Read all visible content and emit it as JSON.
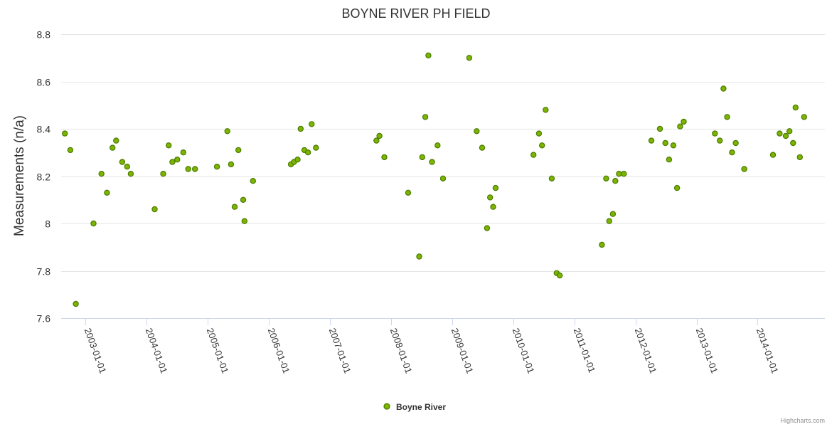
{
  "chart_data": {
    "type": "scatter",
    "title": "BOYNE RIVER PH FIELD",
    "xlabel": "",
    "ylabel": "Measurements (n/a)",
    "ylim": [
      7.6,
      8.8
    ],
    "yticks": [
      7.6,
      7.8,
      8,
      8.2,
      8.4,
      8.6,
      8.8
    ],
    "ytick_labels": [
      "7.6",
      "7.8",
      "8",
      "8.2",
      "8.4",
      "8.6",
      "8.8"
    ],
    "xlim": [
      2002.6,
      2015.1
    ],
    "xticks": [
      2003,
      2004,
      2005,
      2006,
      2007,
      2008,
      2009,
      2010,
      2011,
      2012,
      2013,
      2014
    ],
    "xtick_labels": [
      "2003-01-01",
      "2004-01-01",
      "2005-01-01",
      "2006-01-01",
      "2007-01-01",
      "2008-01-01",
      "2009-01-01",
      "2010-01-01",
      "2011-01-01",
      "2012-01-01",
      "2013-01-01",
      "2014-01-01"
    ],
    "grid": true,
    "legend_position": "bottom-center",
    "series": [
      {
        "name": "Boyne River",
        "color": "#7cb400",
        "border_color": "#4a7a00",
        "points": [
          [
            2002.66,
            8.38
          ],
          [
            2002.75,
            8.31
          ],
          [
            2002.84,
            7.66
          ],
          [
            2003.13,
            8.0
          ],
          [
            2003.26,
            8.21
          ],
          [
            2003.35,
            8.13
          ],
          [
            2003.44,
            8.32
          ],
          [
            2003.5,
            8.35
          ],
          [
            2003.6,
            8.26
          ],
          [
            2003.68,
            8.24
          ],
          [
            2003.74,
            8.21
          ],
          [
            2004.13,
            8.06
          ],
          [
            2004.27,
            8.21
          ],
          [
            2004.36,
            8.33
          ],
          [
            2004.42,
            8.26
          ],
          [
            2004.5,
            8.27
          ],
          [
            2004.6,
            8.3
          ],
          [
            2004.68,
            8.23
          ],
          [
            2004.79,
            8.23
          ],
          [
            2005.15,
            8.24
          ],
          [
            2005.32,
            8.39
          ],
          [
            2005.38,
            8.25
          ],
          [
            2005.44,
            8.07
          ],
          [
            2005.5,
            8.31
          ],
          [
            2005.58,
            8.1
          ],
          [
            2005.6,
            8.01
          ],
          [
            2005.74,
            8.18
          ],
          [
            2006.36,
            8.25
          ],
          [
            2006.41,
            8.26
          ],
          [
            2006.47,
            8.27
          ],
          [
            2006.52,
            8.4
          ],
          [
            2006.58,
            8.31
          ],
          [
            2006.64,
            8.3
          ],
          [
            2006.7,
            8.42
          ],
          [
            2006.77,
            8.32
          ],
          [
            2007.76,
            8.35
          ],
          [
            2007.81,
            8.37
          ],
          [
            2007.89,
            8.28
          ],
          [
            2008.28,
            8.13
          ],
          [
            2008.46,
            7.86
          ],
          [
            2008.51,
            8.28
          ],
          [
            2008.56,
            8.45
          ],
          [
            2008.61,
            8.71
          ],
          [
            2008.67,
            8.26
          ],
          [
            2008.76,
            8.33
          ],
          [
            2008.85,
            8.19
          ],
          [
            2009.28,
            8.7
          ],
          [
            2009.4,
            8.39
          ],
          [
            2009.49,
            8.32
          ],
          [
            2009.57,
            7.98
          ],
          [
            2009.62,
            8.11
          ],
          [
            2009.67,
            8.07
          ],
          [
            2009.71,
            8.15
          ],
          [
            2010.33,
            8.29
          ],
          [
            2010.42,
            8.38
          ],
          [
            2010.47,
            8.33
          ],
          [
            2010.53,
            8.48
          ],
          [
            2010.63,
            8.19
          ],
          [
            2010.71,
            7.79
          ],
          [
            2010.76,
            7.78
          ],
          [
            2011.45,
            7.91
          ],
          [
            2011.52,
            8.19
          ],
          [
            2011.57,
            8.01
          ],
          [
            2011.63,
            8.04
          ],
          [
            2011.67,
            8.18
          ],
          [
            2011.73,
            8.21
          ],
          [
            2011.81,
            8.21
          ],
          [
            2012.26,
            8.35
          ],
          [
            2012.4,
            8.4
          ],
          [
            2012.49,
            8.34
          ],
          [
            2012.55,
            8.27
          ],
          [
            2012.62,
            8.33
          ],
          [
            2012.68,
            8.15
          ],
          [
            2012.73,
            8.41
          ],
          [
            2012.79,
            8.43
          ],
          [
            2013.3,
            8.38
          ],
          [
            2013.38,
            8.35
          ],
          [
            2013.44,
            8.57
          ],
          [
            2013.5,
            8.45
          ],
          [
            2013.58,
            8.3
          ],
          [
            2013.64,
            8.34
          ],
          [
            2013.78,
            8.23
          ],
          [
            2014.25,
            8.29
          ],
          [
            2014.36,
            8.38
          ],
          [
            2014.46,
            8.37
          ],
          [
            2014.52,
            8.39
          ],
          [
            2014.58,
            8.34
          ],
          [
            2014.62,
            8.49
          ],
          [
            2014.69,
            8.28
          ],
          [
            2014.76,
            8.45
          ]
        ]
      }
    ]
  },
  "credits": "Highcharts.com"
}
